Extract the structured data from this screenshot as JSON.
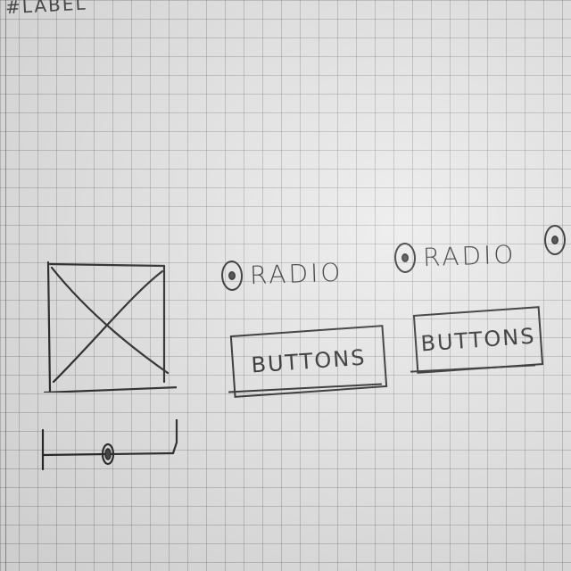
{
  "sheet": {
    "top_label": "#LABEL"
  },
  "image_placeholder": {
    "icon": "image-placeholder-icon"
  },
  "slider": {
    "value": 0.5
  },
  "radios": [
    {
      "label": "RADIO",
      "selected": true
    },
    {
      "label": "RADIO",
      "selected": true
    },
    {
      "label": "",
      "selected": true
    }
  ],
  "buttons": [
    {
      "label": "BUTTONS"
    },
    {
      "label": "BUTTONS"
    }
  ]
}
